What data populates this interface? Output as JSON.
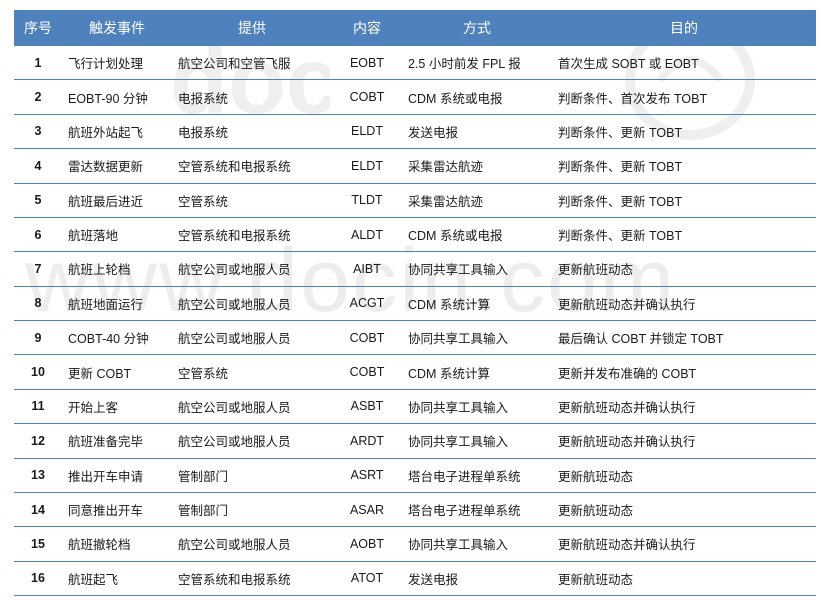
{
  "colors": {
    "header_bg": "#4f81bd",
    "header_fg": "#ffffff",
    "row_border": "#4f81bd",
    "text": "#1a1a1a",
    "watermark": "#7a7a7a"
  },
  "watermark": {
    "text": "www.docin.com",
    "top_logo_hint": "doc + stylized d"
  },
  "columns": [
    {
      "key": "idx",
      "label": "序号"
    },
    {
      "key": "event",
      "label": "触发事件"
    },
    {
      "key": "provider",
      "label": "提供"
    },
    {
      "key": "code",
      "label": "内容"
    },
    {
      "key": "method",
      "label": "方式"
    },
    {
      "key": "purpose",
      "label": "目的"
    }
  ],
  "rows": [
    {
      "idx": "1",
      "event": "飞行计划处理",
      "provider": "航空公司和空管飞服",
      "code": "EOBT",
      "method": "2.5 小时前发 FPL 报",
      "purpose": "首次生成 SOBT 或 EOBT"
    },
    {
      "idx": "2",
      "event": "EOBT-90 分钟",
      "provider": "电报系统",
      "code": "COBT",
      "method": "CDM 系统或电报",
      "purpose": "判断条件、首次发布 TOBT"
    },
    {
      "idx": "3",
      "event": "航班外站起飞",
      "provider": "电报系统",
      "code": "ELDT",
      "method": "发送电报",
      "purpose": "判断条件、更新 TOBT"
    },
    {
      "idx": "4",
      "event": "雷达数据更新",
      "provider": "空管系统和电报系统",
      "code": "ELDT",
      "method": "采集雷达航迹",
      "purpose": "判断条件、更新 TOBT"
    },
    {
      "idx": "5",
      "event": "航班最后进近",
      "provider": "空管系统",
      "code": "TLDT",
      "method": "采集雷达航迹",
      "purpose": "判断条件、更新 TOBT"
    },
    {
      "idx": "6",
      "event": "航班落地",
      "provider": "空管系统和电报系统",
      "code": "ALDT",
      "method": "CDM 系统或电报",
      "purpose": "判断条件、更新 TOBT"
    },
    {
      "idx": "7",
      "event": "航班上轮档",
      "provider": "航空公司或地服人员",
      "code": "AIBT",
      "method": "协同共享工具输入",
      "purpose": "更新航班动态"
    },
    {
      "idx": "8",
      "event": "航班地面运行",
      "provider": "航空公司或地服人员",
      "code": "ACGT",
      "method": "CDM 系统计算",
      "purpose": "更新航班动态并确认执行"
    },
    {
      "idx": "9",
      "event": "COBT-40 分钟",
      "provider": "航空公司或地服人员",
      "code": "COBT",
      "method": "协同共享工具输入",
      "purpose": "最后确认 COBT 并锁定 TOBT"
    },
    {
      "idx": "10",
      "event": "更新 COBT",
      "provider": "空管系统",
      "code": "COBT",
      "method": "CDM 系统计算",
      "purpose": "更新并发布准确的 COBT"
    },
    {
      "idx": "11",
      "event": "开始上客",
      "provider": "航空公司或地服人员",
      "code": "ASBT",
      "method": "协同共享工具输入",
      "purpose": "更新航班动态并确认执行"
    },
    {
      "idx": "12",
      "event": "航班准备完毕",
      "provider": "航空公司或地服人员",
      "code": "ARDT",
      "method": "协同共享工具输入",
      "purpose": "更新航班动态并确认执行"
    },
    {
      "idx": "13",
      "event": "推出开车申请",
      "provider": "管制部门",
      "code": "ASRT",
      "method": "塔台电子进程单系统",
      "purpose": "更新航班动态"
    },
    {
      "idx": "14",
      "event": "同意推出开车",
      "provider": "管制部门",
      "code": "ASAR",
      "method": "塔台电子进程单系统",
      "purpose": "更新航班动态"
    },
    {
      "idx": "15",
      "event": "航班撤轮档",
      "provider": "航空公司或地服人员",
      "code": "AOBT",
      "method": "协同共享工具输入",
      "purpose": "更新航班动态并确认执行"
    },
    {
      "idx": "16",
      "event": "航班起飞",
      "provider": "空管系统和电报系统",
      "code": "ATOT",
      "method": "发送电报",
      "purpose": "更新航班动态"
    }
  ]
}
